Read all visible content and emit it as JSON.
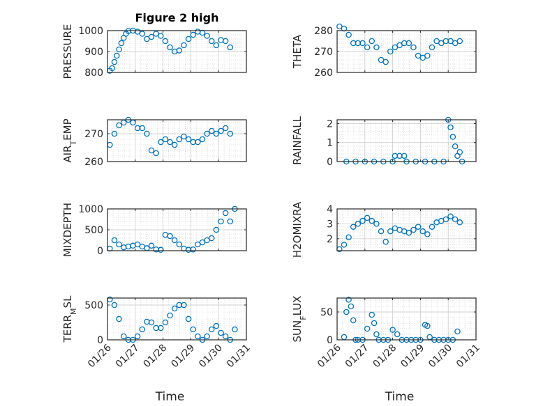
{
  "figure": {
    "title": "Figure 2 high",
    "marker_color": "#0072BD"
  },
  "x_ticks": [
    "01/26",
    "01/27",
    "01/28",
    "01/29",
    "01/30",
    "01/31"
  ],
  "x_label": "Time",
  "chart_data": [
    {
      "type": "scatter",
      "title": "Figure 2 high",
      "ylabel_parts": [
        "PRESSURE"
      ],
      "ylim": [
        800,
        1000
      ],
      "yticks": [
        "800",
        "900",
        "1000"
      ],
      "xlim": [
        "01/26",
        "01/31"
      ],
      "grid": true,
      "x": [
        "01/26 02:00",
        "01/26 04:00",
        "01/26 06:00",
        "01/26 08:00",
        "01/26 10:00",
        "01/26 12:00",
        "01/26 14:00",
        "01/26 16:00",
        "01/26 18:00",
        "01/26 22:00",
        "01/27 02:00",
        "01/27 06:00",
        "01/27 10:00",
        "01/27 14:00",
        "01/27 18:00",
        "01/27 22:00",
        "01/28 02:00",
        "01/28 06:00",
        "01/28 10:00",
        "01/28 14:00",
        "01/28 18:00",
        "01/28 22:00",
        "01/29 02:00",
        "01/29 06:00",
        "01/29 10:00",
        "01/29 14:00",
        "01/29 18:00",
        "01/29 22:00",
        "01/30 02:00",
        "01/30 06:00",
        "01/30 10:00"
      ],
      "y": [
        808,
        820,
        850,
        880,
        910,
        940,
        965,
        985,
        998,
        1000,
        995,
        985,
        960,
        970,
        985,
        975,
        950,
        920,
        900,
        905,
        930,
        960,
        980,
        995,
        990,
        975,
        950,
        930,
        955,
        950,
        920
      ]
    },
    {
      "type": "scatter",
      "ylabel_parts": [
        "THETA"
      ],
      "ylim": [
        260,
        280
      ],
      "yticks": [
        "260",
        "270",
        "280"
      ],
      "xlim": [
        "01/26",
        "01/31"
      ],
      "grid": true,
      "x": [
        "01/26 02:00",
        "01/26 06:00",
        "01/26 10:00",
        "01/26 14:00",
        "01/26 18:00",
        "01/26 22:00",
        "01/27 02:00",
        "01/27 06:00",
        "01/27 10:00",
        "01/27 14:00",
        "01/27 18:00",
        "01/27 22:00",
        "01/28 02:00",
        "01/28 06:00",
        "01/28 10:00",
        "01/28 14:00",
        "01/28 18:00",
        "01/28 22:00",
        "01/29 02:00",
        "01/29 06:00",
        "01/29 10:00",
        "01/29 14:00",
        "01/29 18:00",
        "01/29 22:00",
        "01/30 02:00",
        "01/30 06:00",
        "01/30 10:00"
      ],
      "y": [
        282,
        281,
        278,
        274,
        274,
        274,
        272,
        275,
        272,
        266,
        265,
        270,
        272,
        273,
        274,
        274,
        272,
        268,
        267,
        268,
        272,
        275,
        274,
        275,
        275,
        274,
        275
      ]
    },
    {
      "type": "scatter",
      "ylabel_parts": [
        "AIR",
        "T",
        "EMP"
      ],
      "ylim": [
        260,
        275
      ],
      "yticks": [
        "260",
        "270"
      ],
      "xlim": [
        "01/26",
        "01/31"
      ],
      "grid": true,
      "x": [
        "01/26 02:00",
        "01/26 06:00",
        "01/26 10:00",
        "01/26 14:00",
        "01/26 18:00",
        "01/26 22:00",
        "01/27 02:00",
        "01/27 06:00",
        "01/27 10:00",
        "01/27 14:00",
        "01/27 18:00",
        "01/27 22:00",
        "01/28 02:00",
        "01/28 06:00",
        "01/28 10:00",
        "01/28 14:00",
        "01/28 18:00",
        "01/28 22:00",
        "01/29 02:00",
        "01/29 06:00",
        "01/29 10:00",
        "01/29 14:00",
        "01/29 18:00",
        "01/29 22:00",
        "01/30 02:00",
        "01/30 06:00",
        "01/30 10:00"
      ],
      "y": [
        266,
        270,
        273,
        274,
        275,
        274,
        272,
        272,
        270,
        264,
        263,
        267,
        268,
        267,
        266,
        268,
        269,
        268,
        267,
        267,
        268,
        270,
        271,
        270,
        271,
        272,
        270
      ]
    },
    {
      "type": "scatter",
      "ylabel_parts": [
        "RAINFALL"
      ],
      "ylim": [
        0,
        2.2
      ],
      "yticks": [
        "0",
        "1",
        "2"
      ],
      "xlim": [
        "01/26",
        "01/31"
      ],
      "grid": true,
      "x": [
        "01/26 08:00",
        "01/26 16:00",
        "01/27 00:00",
        "01/27 08:00",
        "01/27 16:00",
        "01/28 00:00",
        "01/28 02:00",
        "01/28 06:00",
        "01/28 10:00",
        "01/28 12:00",
        "01/28 20:00",
        "01/29 04:00",
        "01/29 12:00",
        "01/29 20:00",
        "01/30 00:00",
        "01/30 02:00",
        "01/30 04:00",
        "01/30 06:00",
        "01/30 08:00",
        "01/30 10:00",
        "01/30 12:00"
      ],
      "y": [
        0,
        0,
        0,
        0,
        0,
        0,
        0.3,
        0.3,
        0.3,
        0,
        0,
        0,
        0,
        0,
        2.2,
        1.8,
        1.3,
        0.8,
        0.3,
        0.5,
        0
      ]
    },
    {
      "type": "scatter",
      "ylabel_parts": [
        "MIXDEPTH"
      ],
      "ylim": [
        0,
        1000
      ],
      "yticks": [
        "0",
        "500",
        "1000"
      ],
      "xlim": [
        "01/26",
        "01/31"
      ],
      "grid": true,
      "x": [
        "01/26 02:00",
        "01/26 06:00",
        "01/26 10:00",
        "01/26 14:00",
        "01/26 18:00",
        "01/26 22:00",
        "01/27 02:00",
        "01/27 06:00",
        "01/27 10:00",
        "01/27 14:00",
        "01/27 18:00",
        "01/27 22:00",
        "01/28 02:00",
        "01/28 06:00",
        "01/28 10:00",
        "01/28 14:00",
        "01/28 18:00",
        "01/28 22:00",
        "01/29 02:00",
        "01/29 06:00",
        "01/29 10:00",
        "01/29 14:00",
        "01/29 18:00",
        "01/29 22:00",
        "01/30 02:00",
        "01/30 06:00",
        "01/30 10:00",
        "01/30 14:00"
      ],
      "y": [
        50,
        250,
        150,
        80,
        100,
        120,
        150,
        100,
        60,
        120,
        30,
        20,
        380,
        350,
        250,
        150,
        50,
        20,
        30,
        150,
        200,
        250,
        300,
        500,
        700,
        900,
        700,
        1000
      ]
    },
    {
      "type": "scatter",
      "ylabel_parts": [
        "H2OMIXRA"
      ],
      "ylim": [
        1.2,
        4
      ],
      "yticks": [
        "2",
        "3",
        "4"
      ],
      "xlim": [
        "01/26",
        "01/31"
      ],
      "grid": true,
      "x": [
        "01/26 02:00",
        "01/26 06:00",
        "01/26 10:00",
        "01/26 14:00",
        "01/26 18:00",
        "01/26 22:00",
        "01/27 02:00",
        "01/27 06:00",
        "01/27 10:00",
        "01/27 14:00",
        "01/27 18:00",
        "01/27 22:00",
        "01/28 02:00",
        "01/28 06:00",
        "01/28 10:00",
        "01/28 14:00",
        "01/28 18:00",
        "01/28 22:00",
        "01/29 02:00",
        "01/29 06:00",
        "01/29 10:00",
        "01/29 14:00",
        "01/29 18:00",
        "01/29 22:00",
        "01/30 02:00",
        "01/30 06:00",
        "01/30 10:00"
      ],
      "y": [
        1.3,
        1.6,
        2.1,
        2.8,
        3.0,
        3.2,
        3.4,
        3.2,
        3.0,
        2.5,
        1.8,
        2.5,
        2.7,
        2.6,
        2.5,
        2.4,
        2.6,
        2.8,
        2.5,
        2.3,
        2.8,
        3.1,
        3.2,
        3.3,
        3.5,
        3.3,
        3.1
      ]
    },
    {
      "type": "scatter",
      "ylabel_parts": [
        "TERR",
        "M",
        "SL"
      ],
      "ylim": [
        0,
        600
      ],
      "yticks": [
        "0",
        "500"
      ],
      "xlim": [
        "01/26",
        "01/31"
      ],
      "grid": true,
      "x": [
        "01/26 02:00",
        "01/26 06:00",
        "01/26 10:00",
        "01/26 14:00",
        "01/26 18:00",
        "01/26 22:00",
        "01/27 02:00",
        "01/27 06:00",
        "01/27 10:00",
        "01/27 14:00",
        "01/27 18:00",
        "01/27 22:00",
        "01/28 02:00",
        "01/28 06:00",
        "01/28 10:00",
        "01/28 14:00",
        "01/28 18:00",
        "01/28 22:00",
        "01/29 02:00",
        "01/29 06:00",
        "01/29 10:00",
        "01/29 14:00",
        "01/29 18:00",
        "01/29 22:00",
        "01/30 02:00",
        "01/30 06:00",
        "01/30 10:00",
        "01/30 14:00"
      ],
      "y": [
        580,
        500,
        300,
        50,
        0,
        0,
        50,
        150,
        260,
        250,
        170,
        170,
        250,
        350,
        450,
        500,
        500,
        300,
        150,
        50,
        0,
        50,
        150,
        200,
        100,
        50,
        0,
        150
      ]
    },
    {
      "type": "scatter",
      "ylabel_parts": [
        "SUN",
        "F",
        "LUX"
      ],
      "ylim": [
        0,
        75
      ],
      "yticks": [
        "0",
        "50"
      ],
      "xlim": [
        "01/26",
        "01/31"
      ],
      "grid": true,
      "x": [
        "01/26 06:00",
        "01/26 08:00",
        "01/26 10:00",
        "01/26 12:00",
        "01/26 14:00",
        "01/26 16:00",
        "01/26 18:00",
        "01/26 22:00",
        "01/27 02:00",
        "01/27 06:00",
        "01/27 08:00",
        "01/27 10:00",
        "01/27 12:00",
        "01/27 16:00",
        "01/27 20:00",
        "01/28 00:00",
        "01/28 04:00",
        "01/28 08:00",
        "01/28 12:00",
        "01/28 16:00",
        "01/28 20:00",
        "01/29 00:00",
        "01/29 04:00",
        "01/29 06:00",
        "01/29 08:00",
        "01/29 12:00",
        "01/29 16:00",
        "01/29 20:00",
        "01/30 00:00",
        "01/30 04:00",
        "01/30 08:00"
      ],
      "y": [
        5,
        50,
        72,
        60,
        35,
        0,
        0,
        0,
        20,
        45,
        30,
        10,
        0,
        0,
        0,
        18,
        10,
        0,
        0,
        0,
        0,
        0,
        27,
        25,
        5,
        0,
        0,
        0,
        0,
        0,
        15
      ]
    }
  ]
}
